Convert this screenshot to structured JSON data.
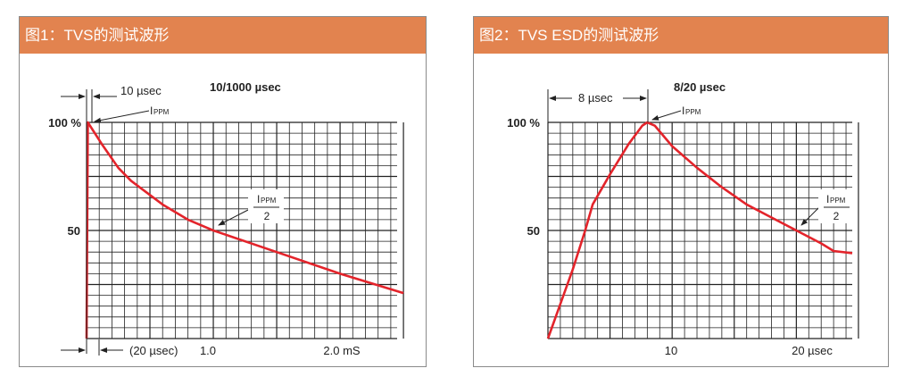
{
  "chart_data": [
    {
      "type": "line",
      "header": "图1：TVS的测试波形",
      "title": "10/1000 µsec",
      "y_ticks": [
        "100 %",
        "50"
      ],
      "x_ticks": [
        {
          "value": 1.0,
          "label": "1.0"
        },
        {
          "value": 2.0,
          "label": "2.0 mS"
        }
      ],
      "xlim": [
        0,
        2.45
      ],
      "ylim": [
        0,
        100
      ],
      "grid": true,
      "x_unit": "ms",
      "annotations": {
        "rise": "10 µsec",
        "peak": "IPPM",
        "peak_main": "I",
        "peak_sub": "PPM",
        "half_den": "2",
        "base": "(20 µsec)"
      },
      "series": [
        {
          "color": "#E3242B",
          "x": [
            0,
            0.01,
            0.12,
            0.25,
            0.35,
            0.6,
            0.8,
            1.0,
            1.5,
            2.0,
            2.5
          ],
          "y": [
            0,
            100,
            90,
            79,
            73,
            62,
            55,
            50,
            40,
            30,
            21
          ]
        }
      ]
    },
    {
      "type": "line",
      "header": "图2：TVS ESD的测试波形",
      "title": "8/20 µsec",
      "y_ticks": [
        "100 %",
        "50"
      ],
      "x_ticks": [
        {
          "value": 10,
          "label": "10"
        },
        {
          "value": 20,
          "label": "20 µsec"
        }
      ],
      "xlim": [
        0,
        24.5
      ],
      "ylim": [
        0,
        100
      ],
      "grid": true,
      "x_unit": "µs",
      "annotations": {
        "rise": "8 µsec",
        "peak": "IPPM",
        "peak_main": "I",
        "peak_sub": "PPM",
        "half_den": "2"
      },
      "series": [
        {
          "color": "#E3242B",
          "x": [
            0,
            2,
            3,
            3.6,
            5,
            6.5,
            7.6,
            8,
            8.6,
            10,
            12,
            14,
            16,
            18,
            20,
            22,
            23,
            24.5
          ],
          "y": [
            0,
            32,
            50,
            62,
            76,
            90,
            98.5,
            100,
            98.5,
            89,
            79,
            70,
            62,
            56,
            50,
            44,
            40.5,
            39.5
          ]
        }
      ]
    }
  ]
}
